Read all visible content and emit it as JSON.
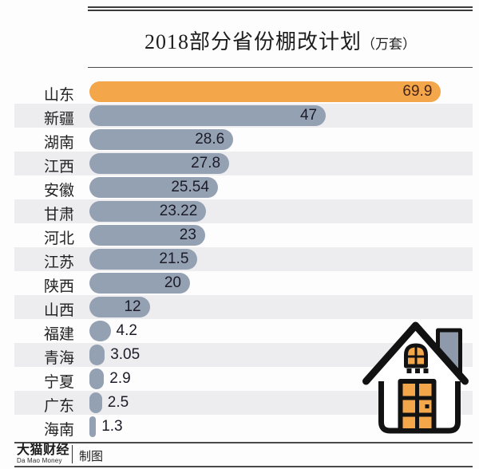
{
  "header": {
    "title": "2018部分省份棚改计划",
    "unit": "（万套）"
  },
  "chart_data": {
    "type": "bar",
    "orientation": "horizontal",
    "title": "2018部分省份棚改计划（万套）",
    "unit": "万套",
    "categories": [
      "山东",
      "新疆",
      "湖南",
      "江西",
      "安徽",
      "甘肃",
      "河北",
      "江苏",
      "陕西",
      "山西",
      "福建",
      "青海",
      "宁夏",
      "广东",
      "海南"
    ],
    "values": [
      69.9,
      47,
      28.6,
      27.8,
      25.54,
      23.22,
      23,
      21.5,
      20,
      12,
      4.2,
      3.05,
      2.9,
      2.5,
      1.3
    ],
    "value_labels": [
      "69.9",
      "47",
      "28.6",
      "27.8",
      "25.54",
      "23.22",
      "23",
      "21.5",
      "20",
      "12",
      "4.2",
      "3.05",
      "2.9",
      "2.5",
      "1.3"
    ],
    "xlim": [
      0,
      76
    ],
    "grid": false,
    "legend_position": "none",
    "highlight_index": 0,
    "highlight_color": "#F3A64A",
    "highlight_value_color": "#4A2519",
    "bar_color": "#94A1B3",
    "value_color": "#1C1C28",
    "row_stripe_color": "#EDEDF0"
  },
  "footer": {
    "brand": "大猫财经",
    "brand_sub": "Da Mao Money",
    "credit": "制图"
  },
  "icons": {
    "house": "house-icon"
  }
}
